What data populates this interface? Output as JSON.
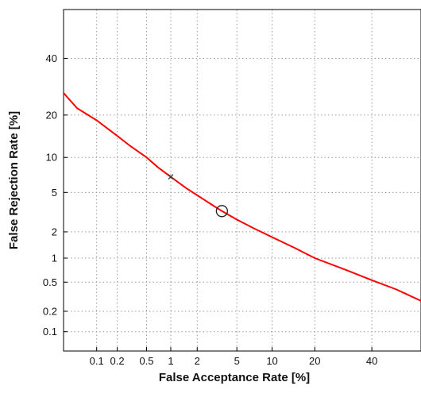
{
  "chart_data": {
    "type": "line",
    "title": "",
    "xlabel": "False Acceptance Rate [%]",
    "ylabel": "False Rejection Rate [%]",
    "x_scale": "probit",
    "y_scale": "probit",
    "xlim": [
      0.03,
      60
    ],
    "ylim": [
      0.05,
      60
    ],
    "grid": true,
    "x_ticks": [
      0.1,
      0.2,
      0.5,
      1,
      2,
      5,
      10,
      20,
      40
    ],
    "x_tick_labels": [
      "0.1",
      "0.2",
      "0.5",
      "1",
      "2",
      "5",
      "10",
      "20",
      "40"
    ],
    "y_ticks": [
      0.1,
      0.2,
      0.5,
      1,
      2,
      5,
      10,
      20,
      40
    ],
    "y_tick_labels": [
      "0.1",
      "0.2",
      "0.5",
      "1",
      "2",
      "5",
      "10",
      "20",
      "40"
    ],
    "series": [
      {
        "color": "#ff0000",
        "points": [
          [
            0.03,
            27
          ],
          [
            0.05,
            22
          ],
          [
            0.1,
            18.5
          ],
          [
            0.2,
            14.5
          ],
          [
            0.3,
            12.3
          ],
          [
            0.5,
            10
          ],
          [
            0.7,
            8.3
          ],
          [
            1,
            6.9
          ],
          [
            1.5,
            5.5
          ],
          [
            2,
            4.7
          ],
          [
            3,
            3.7
          ],
          [
            3.6,
            3.3
          ],
          [
            5,
            2.7
          ],
          [
            7,
            2.2
          ],
          [
            10,
            1.75
          ],
          [
            15,
            1.3
          ],
          [
            20,
            1.0
          ],
          [
            30,
            0.72
          ],
          [
            40,
            0.53
          ],
          [
            50,
            0.4
          ],
          [
            60,
            0.28
          ]
        ]
      }
    ],
    "markers": [
      {
        "type": "x",
        "x": 1.0,
        "y": 6.9,
        "color": "#333333"
      },
      {
        "type": "circle",
        "x": 3.6,
        "y": 3.3,
        "color": "#222222"
      }
    ]
  }
}
